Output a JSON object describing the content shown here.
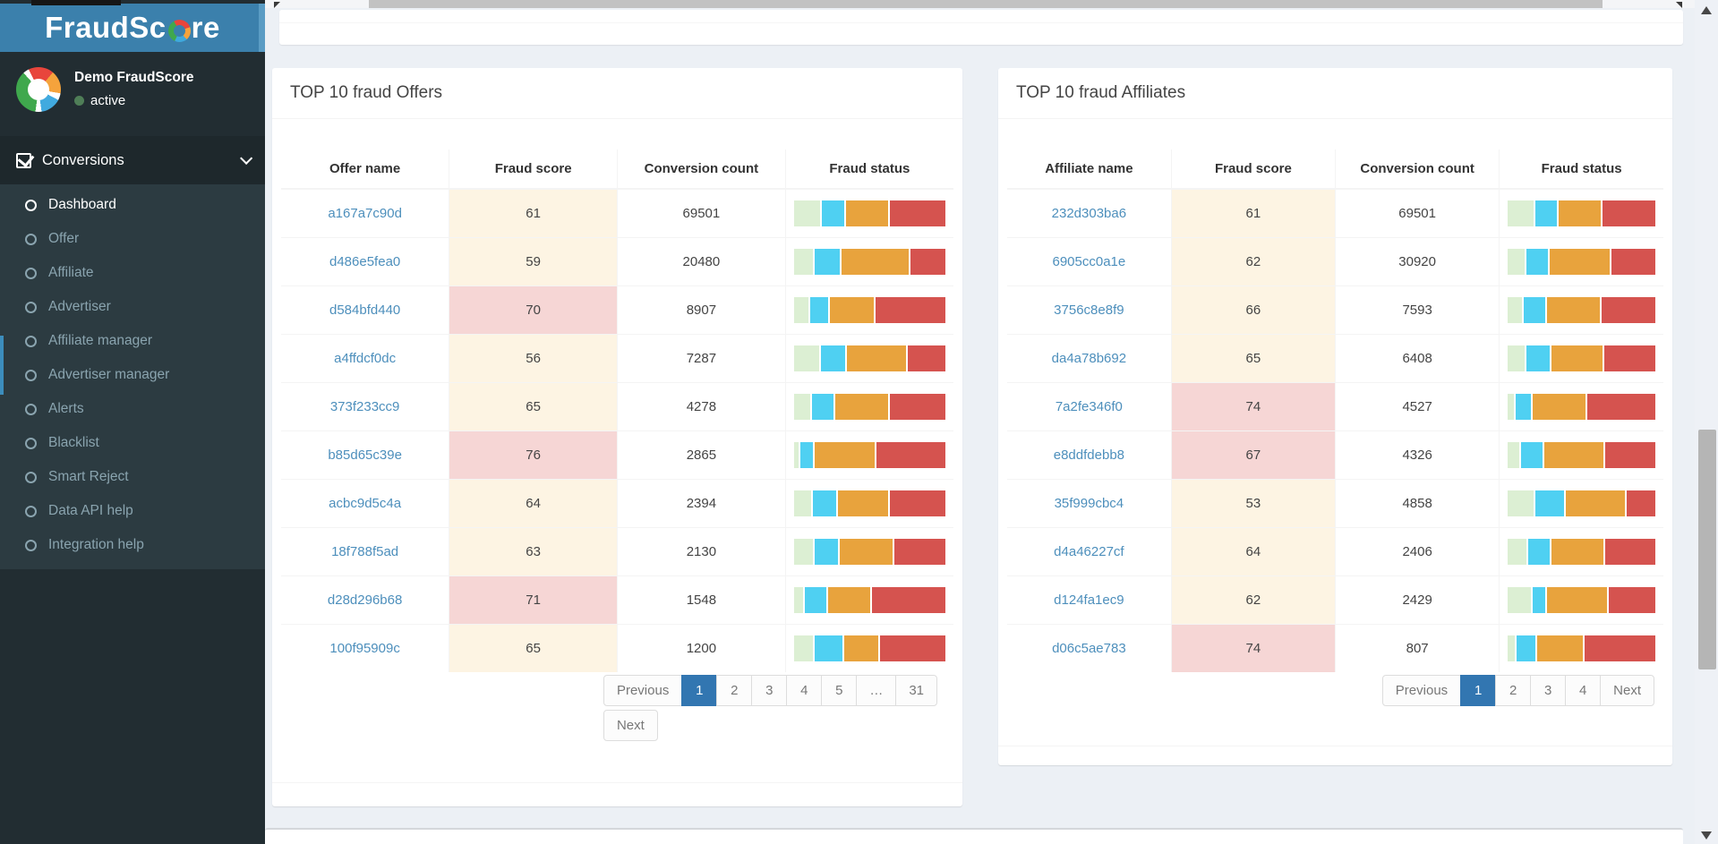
{
  "colors": {
    "sidebar_bg": "#222d32",
    "submenu_bg": "#2c3b41",
    "accent_blue": "#3b80ac",
    "pagination_active": "#3276b1",
    "link": "#4d8fbc",
    "score_warm_bg": "#fdf4e3",
    "score_alert_bg": "#f6d6d5",
    "bar_segment_colors": [
      "#dcefd3",
      "#4fd0f2",
      "#e8a33d",
      "#d5534f"
    ],
    "bar_segment_names": [
      "green",
      "blue",
      "orange",
      "red"
    ],
    "status_dot": "#4f7e57"
  },
  "sidebar": {
    "brand": {
      "before": "FraudSc",
      "after": "re"
    },
    "user": {
      "name": "Demo FraudScore",
      "status": "active"
    },
    "menu": {
      "header": "Conversions",
      "items": [
        {
          "label": "Dashboard",
          "active": true
        },
        {
          "label": "Offer",
          "active": false
        },
        {
          "label": "Affiliate",
          "active": false
        },
        {
          "label": "Advertiser",
          "active": false
        },
        {
          "label": "Affiliate manager",
          "active": false
        },
        {
          "label": "Advertiser manager",
          "active": false
        },
        {
          "label": "Alerts",
          "active": false
        },
        {
          "label": "Blacklist",
          "active": false
        },
        {
          "label": "Smart Reject",
          "active": false
        },
        {
          "label": "Data API help",
          "active": false
        },
        {
          "label": "Integration help",
          "active": false
        }
      ]
    }
  },
  "panels": [
    {
      "id": "offers",
      "title": "TOP 10 fraud Offers",
      "columns": [
        "Offer name",
        "Fraud score",
        "Conversion count",
        "Fraud status"
      ],
      "rows": [
        {
          "name": "a167a7c90d",
          "score": "61",
          "count": "69501",
          "alert": false,
          "segments": [
            18,
            15,
            29,
            38
          ]
        },
        {
          "name": "d486e5fea0",
          "score": "59",
          "count": "20480",
          "alert": false,
          "segments": [
            13,
            17,
            46,
            24
          ]
        },
        {
          "name": "d584bfd440",
          "score": "70",
          "count": "8907",
          "alert": true,
          "segments": [
            10,
            12,
            30,
            48
          ]
        },
        {
          "name": "a4ffdcf0dc",
          "score": "56",
          "count": "7287",
          "alert": false,
          "segments": [
            17,
            17,
            40,
            26
          ]
        },
        {
          "name": "373f233cc9",
          "score": "65",
          "count": "4278",
          "alert": false,
          "segments": [
            11,
            15,
            36,
            38
          ]
        },
        {
          "name": "b85d65c39e",
          "score": "76",
          "count": "2865",
          "alert": true,
          "segments": [
            3,
            9,
            41,
            47
          ]
        },
        {
          "name": "acbc9d5c4a",
          "score": "64",
          "count": "2394",
          "alert": false,
          "segments": [
            12,
            16,
            34,
            38
          ]
        },
        {
          "name": "18f788f5ad",
          "score": "63",
          "count": "2130",
          "alert": false,
          "segments": [
            13,
            16,
            36,
            35
          ]
        },
        {
          "name": "d28d296b68",
          "score": "71",
          "count": "1548",
          "alert": true,
          "segments": [
            6,
            15,
            29,
            50
          ]
        },
        {
          "name": "100f95909c",
          "score": "65",
          "count": "1200",
          "alert": false,
          "segments": [
            13,
            19,
            23,
            45
          ]
        }
      ],
      "pagination": {
        "active": "1",
        "lines": [
          [
            "Previous",
            "1",
            "2",
            "3",
            "4",
            "5",
            "…",
            "31"
          ],
          [
            "Next"
          ]
        ]
      }
    },
    {
      "id": "affiliates",
      "title": "TOP 10 fraud Affiliates",
      "columns": [
        "Affiliate name",
        "Fraud score",
        "Conversion count",
        "Fraud status"
      ],
      "rows": [
        {
          "name": "232d303ba6",
          "score": "61",
          "count": "69501",
          "alert": false,
          "segments": [
            18,
            15,
            30,
            37
          ]
        },
        {
          "name": "6905cc0a1e",
          "score": "62",
          "count": "30920",
          "alert": false,
          "segments": [
            12,
            15,
            42,
            31
          ]
        },
        {
          "name": "3756c8e8f9",
          "score": "66",
          "count": "7593",
          "alert": false,
          "segments": [
            10,
            15,
            37,
            38
          ]
        },
        {
          "name": "da4a78b692",
          "score": "65",
          "count": "6408",
          "alert": false,
          "segments": [
            12,
            16,
            36,
            36
          ]
        },
        {
          "name": "7a2fe346f0",
          "score": "74",
          "count": "4527",
          "alert": true,
          "segments": [
            4,
            11,
            37,
            48
          ]
        },
        {
          "name": "e8ddfdebb8",
          "score": "67",
          "count": "4326",
          "alert": true,
          "segments": [
            8,
            15,
            42,
            35
          ]
        },
        {
          "name": "35f999cbc4",
          "score": "53",
          "count": "4858",
          "alert": false,
          "segments": [
            18,
            20,
            42,
            20
          ]
        },
        {
          "name": "d4a46227cf",
          "score": "64",
          "count": "2406",
          "alert": false,
          "segments": [
            13,
            15,
            37,
            35
          ]
        },
        {
          "name": "d124fa1ec9",
          "score": "62",
          "count": "2429",
          "alert": false,
          "segments": [
            16,
            9,
            42,
            33
          ]
        },
        {
          "name": "d06c5ae783",
          "score": "74",
          "count": "807",
          "alert": true,
          "segments": [
            5,
            13,
            32,
            50
          ]
        }
      ],
      "pagination": {
        "active": "1",
        "lines": [
          [
            "Previous",
            "1",
            "2",
            "3",
            "4",
            "Next"
          ]
        ]
      }
    }
  ]
}
